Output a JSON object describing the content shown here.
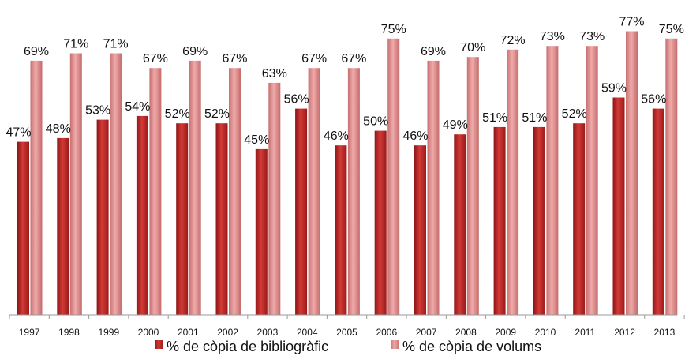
{
  "chart_data": {
    "type": "bar",
    "title": "",
    "xlabel": "",
    "ylabel": "",
    "ylim": [
      0,
      80
    ],
    "grid": false,
    "legend_position": "bottom",
    "categories": [
      "1997",
      "1998",
      "1999",
      "2000",
      "2001",
      "2002",
      "2003",
      "2004",
      "2005",
      "2006",
      "2007",
      "2008",
      "2009",
      "2010",
      "2011",
      "2012",
      "2013"
    ],
    "series": [
      {
        "name": "% de còpia de bibliogràfic",
        "color": "#b8201f",
        "values": [
          47,
          48,
          53,
          54,
          52,
          52,
          45,
          56,
          46,
          50,
          46,
          49,
          51,
          51,
          52,
          59,
          56
        ],
        "labels": [
          "47%",
          "48%",
          "53%",
          "54%",
          "52%",
          "52%",
          "45%",
          "56%",
          "46%",
          "50%",
          "46%",
          "49%",
          "51%",
          "51%",
          "52%",
          "59%",
          "56%"
        ]
      },
      {
        "name": "% de còpia de volums",
        "color": "#d98585",
        "values": [
          69,
          71,
          71,
          67,
          69,
          67,
          63,
          67,
          67,
          75,
          69,
          70,
          72,
          73,
          73,
          77,
          75
        ],
        "labels": [
          "69%",
          "71%",
          "71%",
          "67%",
          "69%",
          "67%",
          "63%",
          "67%",
          "67%",
          "75%",
          "69%",
          "70%",
          "72%",
          "73%",
          "73%",
          "77%",
          "75%"
        ]
      }
    ]
  }
}
